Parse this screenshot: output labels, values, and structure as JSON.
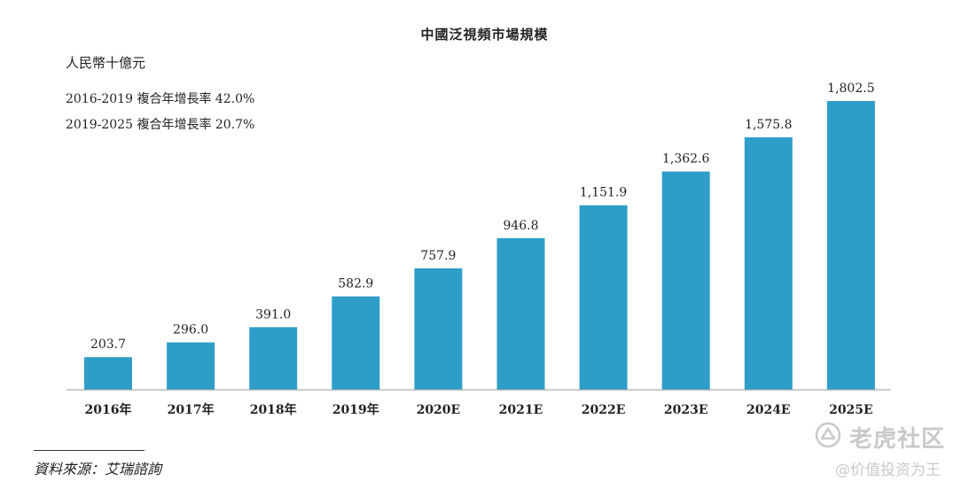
{
  "chart_data": {
    "type": "bar",
    "title": "中國泛視頻市場規模",
    "ylabel": "人民幣十億元",
    "annotations": [
      "2016-2019 複合年增長率 42.0%",
      "2019-2025 複合年增長率 20.7%"
    ],
    "categories": [
      "2016年",
      "2017年",
      "2018年",
      "2019年",
      "2020E",
      "2021E",
      "2022E",
      "2023E",
      "2024E",
      "2025E"
    ],
    "values": [
      203.7,
      296.0,
      391.0,
      582.9,
      757.9,
      946.8,
      1151.9,
      1362.6,
      1575.8,
      1802.5
    ],
    "value_labels": [
      "203.7",
      "296.0",
      "391.0",
      "582.9",
      "757.9",
      "946.8",
      "1,151.9",
      "1,362.6",
      "1,575.8",
      "1,802.5"
    ],
    "ylim": [
      0,
      1802.5
    ],
    "grid": false,
    "legend": "none",
    "bar_color": "#2e9ec9"
  },
  "source": "資料來源：艾瑞諮詢",
  "watermark": {
    "brand": "老虎社区",
    "handle": "@价值投资为王"
  }
}
